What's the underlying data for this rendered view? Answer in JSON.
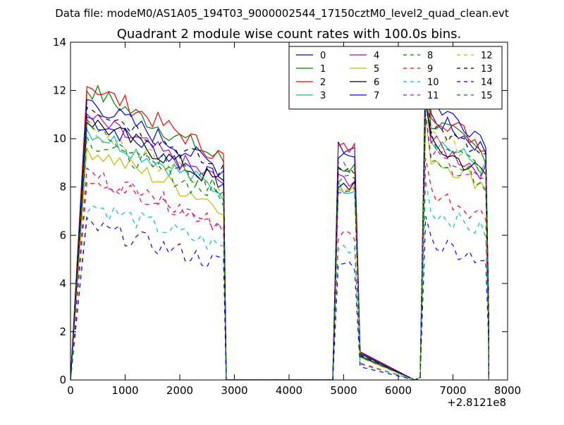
{
  "header": "Data file: modeM0/AS1A05_194T03_9000002544_17150cztM0_level2_quad_clean.evt",
  "chart_data": {
    "type": "line",
    "title": "Quadrant 2 module wise count rates with 100.0s bins.",
    "xlabel": "",
    "ylabel": "",
    "offset_label": "+2.8121e8",
    "xlim": [
      0,
      8000
    ],
    "ylim": [
      0,
      14
    ],
    "xticks": [
      0,
      1000,
      2000,
      3000,
      4000,
      5000,
      6000,
      7000,
      8000
    ],
    "yticks": [
      0,
      2,
      4,
      6,
      8,
      10,
      12,
      14
    ],
    "xtick_labels": [
      "0",
      "1000",
      "2000",
      "3000",
      "4000",
      "5000",
      "6000",
      "7000",
      "8000"
    ],
    "ytick_labels": [
      "0",
      "2",
      "4",
      "6",
      "8",
      "10",
      "12",
      "14"
    ],
    "legend_position": "top-right",
    "segments": [
      {
        "start": 300,
        "end": 2800,
        "post": 2850,
        "step": 100
      },
      {
        "start": 4900,
        "end": 5200,
        "post": 5300,
        "step": 100
      },
      {
        "start": 6400,
        "end": 7600,
        "post": 7650,
        "step": 100
      }
    ],
    "series": [
      {
        "name": "0",
        "color": "#0000ff",
        "dash": "solid",
        "levels": [
          10.9,
          9.6,
          11.2
        ]
      },
      {
        "name": "1",
        "color": "#008000",
        "dash": "solid",
        "levels": [
          12.1,
          8.8,
          11.0
        ]
      },
      {
        "name": "2",
        "color": "#ff0000",
        "dash": "solid",
        "levels": [
          12.3,
          9.6,
          11.4
        ]
      },
      {
        "name": "3",
        "color": "#00bfbf",
        "dash": "solid",
        "levels": [
          10.4,
          8.0,
          10.3
        ]
      },
      {
        "name": "4",
        "color": "#bf00bf",
        "dash": "solid",
        "levels": [
          10.9,
          8.3,
          10.1
        ]
      },
      {
        "name": "5",
        "color": "#bfbf00",
        "dash": "solid",
        "levels": [
          9.6,
          7.8,
          9.5
        ]
      },
      {
        "name": "6",
        "color": "#000000",
        "dash": "solid",
        "levels": [
          10.8,
          8.1,
          10.0
        ]
      },
      {
        "name": "7",
        "color": "#0000ff",
        "dash": "solid",
        "levels": [
          11.6,
          9.4,
          11.8
        ]
      },
      {
        "name": "8",
        "color": "#008000",
        "dash": "dashed",
        "levels": [
          10.0,
          8.9,
          9.6
        ]
      },
      {
        "name": "9",
        "color": "#ff0000",
        "dash": "dashed",
        "levels": [
          8.5,
          6.0,
          8.0
        ]
      },
      {
        "name": "10",
        "color": "#00bfbf",
        "dash": "dashed",
        "levels": [
          7.3,
          5.5,
          7.2
        ]
      },
      {
        "name": "11",
        "color": "#bf00bf",
        "dash": "dashed",
        "levels": [
          8.6,
          7.7,
          9.6
        ]
      },
      {
        "name": "12",
        "color": "#bfbf00",
        "dash": "dashed",
        "levels": [
          10.4,
          7.7,
          10.5
        ]
      },
      {
        "name": "13",
        "color": "#000000",
        "dash": "dashed",
        "levels": [
          11.5,
          8.8,
          10.8
        ]
      },
      {
        "name": "14",
        "color": "#0000ff",
        "dash": "dashed",
        "levels": [
          6.4,
          4.8,
          5.9
        ]
      },
      {
        "name": "15",
        "color": "#008000",
        "dash": "dashed",
        "levels": [
          10.5,
          8.4,
          10.2
        ]
      }
    ]
  }
}
